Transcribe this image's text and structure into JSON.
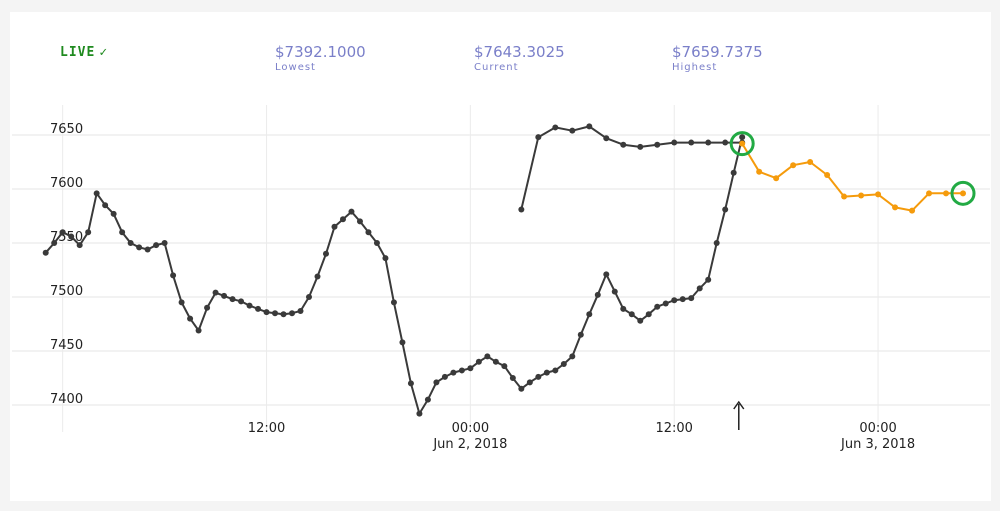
{
  "header": {
    "live_label": "LIVE",
    "live_check": "✓",
    "live_color": "#1f8a1f",
    "stats": [
      {
        "value": "$7392.1000",
        "label": "Lowest"
      },
      {
        "value": "$7643.3025",
        "label": "Current"
      },
      {
        "value": "$7659.7375",
        "label": "Highest"
      }
    ],
    "stat_color": "#7a7fc9"
  },
  "colors": {
    "history_line": "#3a3a3a",
    "forecast_line": "#f59b0c",
    "marker_ring": "#22aa44",
    "grid": "#e6e6e6",
    "vertical_grid": "#ebebeb"
  },
  "icons": {
    "now_marker": "up-arrow-icon"
  },
  "chart_data": {
    "type": "line",
    "x_ticks": [
      {
        "hours": 12,
        "label": "12:00",
        "sublabel": ""
      },
      {
        "hours": 24,
        "label": "00:00",
        "sublabel": "Jun 2, 2018"
      },
      {
        "hours": 36,
        "label": "12:00",
        "sublabel": ""
      },
      {
        "hours": 48,
        "label": "00:00",
        "sublabel": "Jun 3, 2018"
      }
    ],
    "y_ticks": [
      7400,
      7450,
      7500,
      7550,
      7600,
      7650
    ],
    "ylim": [
      7380,
      7680
    ],
    "xlim": [
      -1.1,
      54
    ],
    "now_marker_hours": 39.8,
    "series": [
      {
        "role": "history",
        "hours": [
          -1,
          -0.5,
          0,
          0.5,
          1,
          1.5,
          2,
          2.5,
          3,
          3.5,
          4,
          4.5,
          5,
          5.5,
          6,
          6.5,
          7,
          7.5,
          8,
          8.5,
          9,
          9.5,
          10,
          10.5,
          11,
          11.5,
          12,
          12.5,
          13,
          13.5,
          14,
          14.5,
          15,
          15.5,
          16,
          16.5,
          17,
          17.5,
          18,
          18.5,
          19,
          19.5,
          20,
          20.5,
          21,
          21.5,
          22,
          22.5,
          23,
          23.5,
          24,
          24.5,
          25,
          25.5,
          26,
          26.5,
          27,
          27.5,
          28,
          28.5,
          29,
          29.5,
          30,
          30.5,
          31,
          31.5,
          32,
          32.5,
          33,
          33.5,
          34,
          34.5,
          35,
          35.5,
          36,
          36.5,
          37,
          37.5,
          38,
          38.5,
          39,
          39.5,
          40
        ],
        "values": [
          7541,
          7550,
          7560,
          7556,
          7548,
          7560,
          7596,
          7585,
          7577,
          7560,
          7550,
          7546,
          7544,
          7548,
          7550,
          7520,
          7495,
          7480,
          7469,
          7490,
          7504,
          7501,
          7498,
          7496,
          7492,
          7489,
          7486,
          7485,
          7484,
          7485,
          7487,
          7500,
          7519,
          7540,
          7565,
          7572,
          7579,
          7570,
          7560,
          7550,
          7536,
          7495,
          7458,
          7420,
          7392,
          7405,
          7421,
          7426,
          7430,
          7432,
          7434,
          7440,
          7445,
          7440,
          7436,
          7425,
          7415,
          7421,
          7426,
          7430,
          7432,
          7438,
          7445,
          7465,
          7484,
          7502,
          7521,
          7505,
          7489,
          7484,
          7478,
          7484,
          7491,
          7494,
          7497,
          7498,
          7499,
          7508,
          7516,
          7550,
          7581,
          7615,
          7648
        ]
      },
      {
        "role": "history-late",
        "hours": [
          27,
          28,
          29,
          30,
          31,
          32,
          33,
          34,
          35,
          36,
          37,
          38,
          39,
          40
        ],
        "values": [
          7581,
          7648,
          7657,
          7654,
          7658,
          7647,
          7641,
          7639,
          7641,
          7643,
          7643,
          7643,
          7643,
          7643
        ]
      },
      {
        "role": "forecast",
        "hours": [
          40,
          41,
          42,
          43,
          44,
          45,
          46,
          47,
          48,
          49,
          50,
          51,
          52,
          53
        ],
        "values": [
          7642,
          7616,
          7610,
          7622,
          7625,
          7613,
          7593,
          7594,
          7595,
          7583,
          7580,
          7596,
          7596,
          7596
        ]
      }
    ]
  }
}
